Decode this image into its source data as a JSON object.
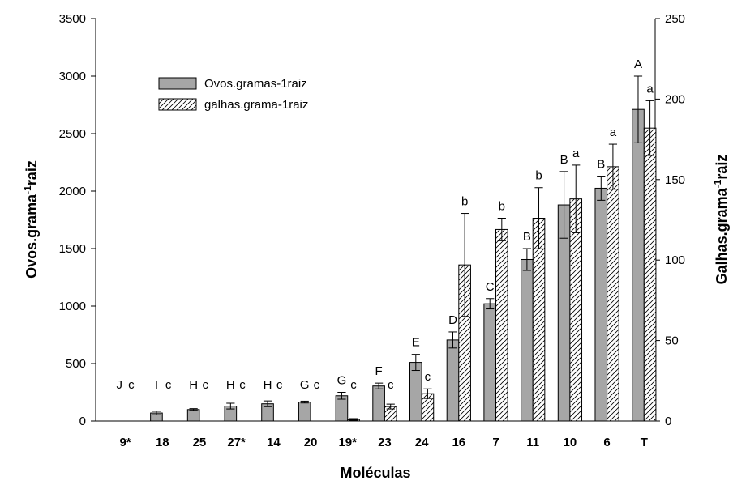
{
  "chart_data": {
    "type": "bar",
    "categories": [
      "9*",
      "18",
      "25",
      "27*",
      "14",
      "20",
      "19*",
      "23",
      "24",
      "16",
      "7",
      "11",
      "10",
      "6",
      "T"
    ],
    "series": [
      {
        "name": "Ovos.gramas-1raiz",
        "axis": "left",
        "pattern": "solid",
        "color": "#a6a6a6",
        "values": [
          0,
          70,
          100,
          130,
          150,
          165,
          220,
          305,
          510,
          705,
          1020,
          1405,
          1880,
          2025,
          2710
        ],
        "errors": [
          0,
          15,
          8,
          25,
          25,
          8,
          30,
          25,
          70,
          70,
          45,
          95,
          290,
          105,
          290
        ],
        "letters": [
          "J",
          "I",
          "H",
          "H",
          "H",
          "G",
          "G",
          "F",
          "E",
          "D",
          "C",
          "B",
          "B",
          "B",
          "A"
        ]
      },
      {
        "name": "galhas.grama-1raiz",
        "axis": "right",
        "pattern": "hatched",
        "color": "#ffffff",
        "values": [
          0,
          0,
          0,
          0,
          0,
          0,
          1,
          9,
          17,
          97,
          119,
          126,
          138,
          158,
          182
        ],
        "errors": [
          0,
          0,
          0,
          0,
          0,
          0,
          0.5,
          1.5,
          3,
          32,
          7,
          19,
          21,
          14,
          17
        ],
        "letters": [
          "c",
          "c",
          "c",
          "c",
          "c",
          "c",
          "c",
          "c",
          "c",
          "b",
          "b",
          "b",
          "a",
          "a",
          "a"
        ]
      }
    ],
    "xlabel": "Moléculas",
    "ylabel_left": {
      "text": "Ovos.grama",
      "sup": "-1",
      "tail": "raiz"
    },
    "ylabel_right": {
      "text": "Galhas.grama",
      "sup": "-1",
      "tail": "raiz"
    },
    "ylim_left": [
      0,
      3500
    ],
    "ylim_right": [
      0,
      250
    ],
    "yticks_left": [
      0,
      500,
      1000,
      1500,
      2000,
      2500,
      3000,
      3500
    ],
    "yticks_right": [
      0,
      50,
      100,
      150,
      200,
      250
    ],
    "grid": false,
    "legend_position": "top-left"
  }
}
